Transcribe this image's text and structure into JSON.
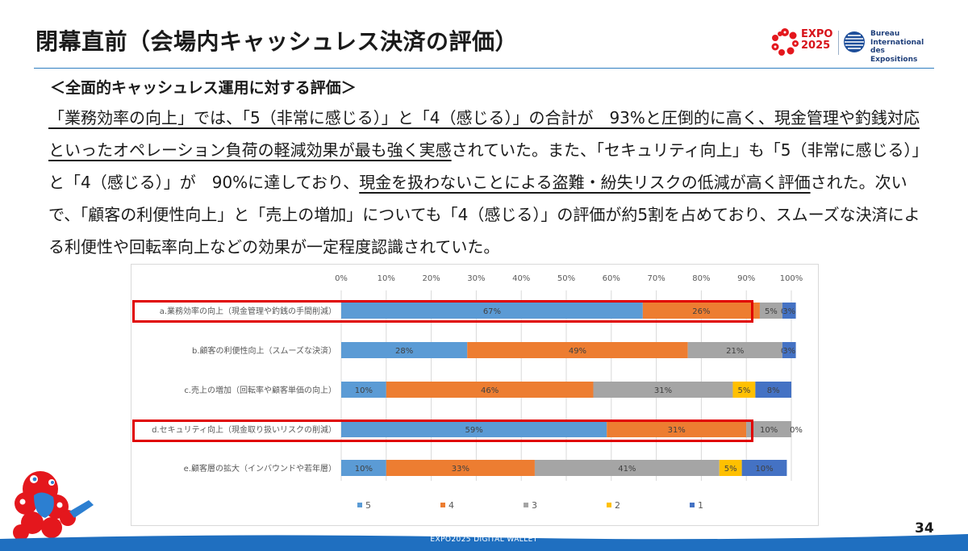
{
  "slide": {
    "title": "閉幕直前（会場内キャッシュレス決済の評価）",
    "subtitle": "＜全面的キャッシュレス運用に対する評価＞",
    "page_number": "34",
    "footer": "EXPO2025 DIGITAL WALLET"
  },
  "logos": {
    "expo_line1": "EXPO",
    "expo_line2": "2025",
    "bie_line1": "Bureau",
    "bie_line2": "International",
    "bie_line3": "des Expositions"
  },
  "body": {
    "seg1": "「業務効率の向上」では、「5（非常に感じる）」と「4（感じる）」の合計が　93%と圧倒的に高く、現金管理や釣銭対応といったオペレーション負荷の軽減効果が最も強く実感",
    "seg2": "されていた。また、「セキュリティ向上」も「5（非常に感じる）」と「4（感じる）」が　90%に達しており、",
    "seg3": "現金を扱わないことによる盗難・紛失リスクの低減が高く評価",
    "seg4": "された。次いで、「顧客の利便性向上」と「売上の増加」についても「4（感じる）」の評価が約5割を占めており、スムーズな決済による利便性や回転率向上などの効果が一定程度認識されていた。"
  },
  "colors": {
    "s5": "#5b9bd5",
    "s4": "#ed7d31",
    "s3": "#a5a5a5",
    "s2": "#ffc000",
    "s1": "#4472c4",
    "accent_red": "#e00000",
    "footer_blue": "#1f6fc0"
  },
  "chart_data": {
    "type": "bar",
    "orientation": "horizontal",
    "stacked": true,
    "xlim": [
      0,
      100
    ],
    "xticks": [
      "0%",
      "10%",
      "20%",
      "30%",
      "40%",
      "50%",
      "60%",
      "70%",
      "80%",
      "90%",
      "100%"
    ],
    "categories": [
      "a.業務効率の向上（現金管理や釣銭の手間削減）",
      "b.顧客の利便性向上（スムーズな決済）",
      "c.売上の増加（回転率や顧客単価の向上）",
      "d.セキュリティ向上（現金取り扱いリスクの削減）",
      "e.顧客層の拡大（インバウンドや若年層）"
    ],
    "series": [
      {
        "name": "5",
        "values": [
          67,
          28,
          10,
          59,
          10
        ]
      },
      {
        "name": "4",
        "values": [
          26,
          49,
          46,
          31,
          33
        ]
      },
      {
        "name": "3",
        "values": [
          5,
          21,
          31,
          10,
          41
        ]
      },
      {
        "name": "2",
        "values": [
          0,
          0,
          5,
          0,
          5
        ]
      },
      {
        "name": "1",
        "values": [
          3,
          3,
          8,
          0,
          10
        ]
      }
    ],
    "data_labels": [
      [
        "67%",
        "26%",
        "5%",
        "0%",
        "3%"
      ],
      [
        "28%",
        "49%",
        "21%",
        "0%",
        "3%"
      ],
      [
        "10%",
        "46%",
        "31%",
        "5%",
        "8%"
      ],
      [
        "59%",
        "31%",
        "10%",
        "0%",
        ""
      ],
      [
        "10%",
        "33%",
        "41%",
        "5%",
        "10%"
      ]
    ],
    "highlighted_categories": [
      0,
      3
    ],
    "legend_position": "bottom",
    "grid": true
  }
}
